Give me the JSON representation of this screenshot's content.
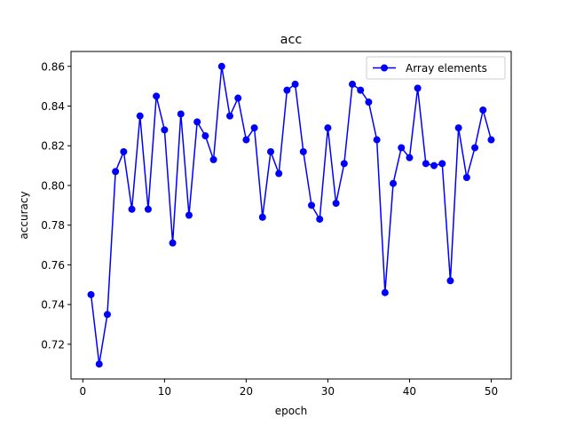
{
  "chart_data": {
    "type": "line",
    "title": "acc",
    "xlabel": "epoch",
    "ylabel": "accuracy",
    "xlim": [
      -1.45,
      52.45
    ],
    "ylim": [
      0.7025,
      0.8675
    ],
    "xticks": [
      0,
      10,
      20,
      30,
      40,
      50
    ],
    "xtick_labels": [
      "0",
      "10",
      "20",
      "30",
      "40",
      "50"
    ],
    "yticks": [
      0.72,
      0.74,
      0.76,
      0.78,
      0.8,
      0.82,
      0.84,
      0.86
    ],
    "ytick_labels": [
      "0.72",
      "0.74",
      "0.76",
      "0.78",
      "0.80",
      "0.82",
      "0.84",
      "0.86"
    ],
    "grid": false,
    "legend": "upper-right",
    "series": [
      {
        "name": "Array elements",
        "color": "#0000ff",
        "marker": "circle",
        "x": [
          1,
          2,
          3,
          4,
          5,
          6,
          7,
          8,
          9,
          10,
          11,
          12,
          13,
          14,
          15,
          16,
          17,
          18,
          19,
          20,
          21,
          22,
          23,
          24,
          25,
          26,
          27,
          28,
          29,
          30,
          31,
          32,
          33,
          34,
          35,
          36,
          37,
          38,
          39,
          40,
          41,
          42,
          43,
          44,
          45,
          46,
          47,
          48,
          49,
          50
        ],
        "y": [
          0.745,
          0.71,
          0.735,
          0.807,
          0.817,
          0.788,
          0.835,
          0.788,
          0.845,
          0.828,
          0.771,
          0.836,
          0.785,
          0.832,
          0.825,
          0.813,
          0.86,
          0.835,
          0.844,
          0.823,
          0.829,
          0.784,
          0.817,
          0.806,
          0.848,
          0.851,
          0.817,
          0.79,
          0.783,
          0.829,
          0.791,
          0.811,
          0.851,
          0.848,
          0.842,
          0.823,
          0.746,
          0.801,
          0.819,
          0.814,
          0.849,
          0.811,
          0.81,
          0.811,
          0.752,
          0.829,
          0.804,
          0.819,
          0.838,
          0.823
        ]
      }
    ]
  }
}
